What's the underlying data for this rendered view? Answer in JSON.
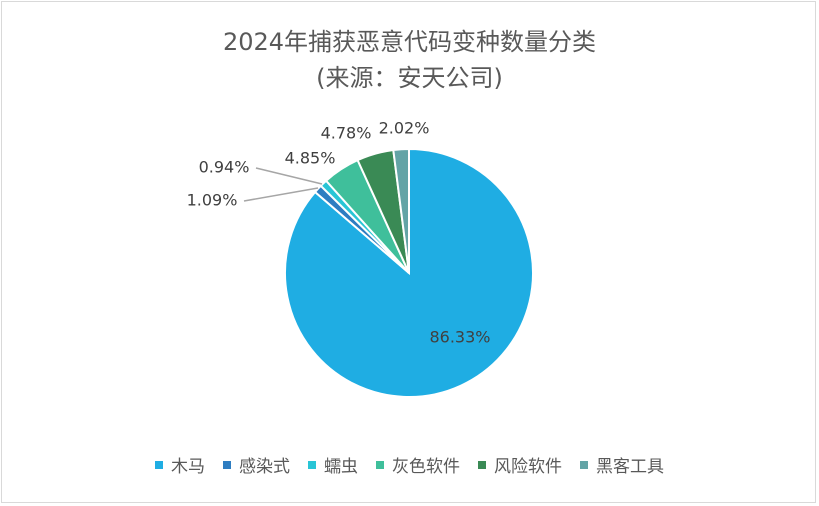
{
  "chart_data": {
    "type": "pie",
    "title_line1": "2024年捕获恶意代码变种数量分类",
    "title_line2": "(来源：安天公司)",
    "slices": [
      {
        "label": "木马",
        "value": 86.33,
        "display": "86.33%",
        "color": "#1fade3"
      },
      {
        "label": "感染式",
        "value": 1.09,
        "display": "1.09%",
        "color": "#2e7dc1"
      },
      {
        "label": "蠕虫",
        "value": 0.94,
        "display": "0.94%",
        "color": "#29c5d6"
      },
      {
        "label": "灰色软件",
        "value": 4.85,
        "display": "4.85%",
        "color": "#3fbf9b"
      },
      {
        "label": "风险软件",
        "value": 4.78,
        "display": "4.78%",
        "color": "#3a8a55"
      },
      {
        "label": "黑客工具",
        "value": 2.02,
        "display": "2.02%",
        "color": "#63a4a6"
      }
    ],
    "legend_position": "bottom"
  }
}
